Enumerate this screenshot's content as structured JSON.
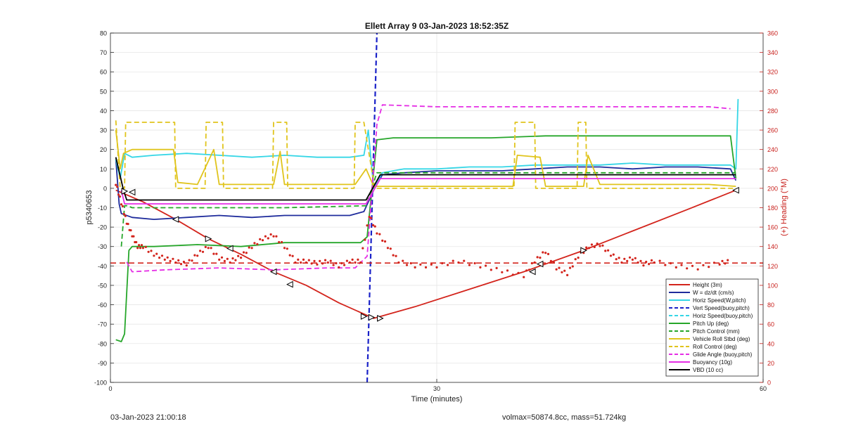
{
  "chart_data": {
    "type": "line",
    "title": "Ellett Array 9 03-Jan-2023 18:52:35Z",
    "xlabel": "Time (minutes)",
    "ylabel_left": "p5340653",
    "ylabel_right": "(+) Heading (°M)",
    "xlim": [
      0,
      60
    ],
    "ylim_left": [
      -100,
      80
    ],
    "ylim_right": [
      0,
      360
    ],
    "x_ticks": [
      "0",
      "30",
      "60"
    ],
    "y_ticks_left": [
      "80",
      "70",
      "60",
      "50",
      "40",
      "30",
      "20",
      "10",
      "0",
      "-10",
      "-20",
      "-30",
      "-40",
      "-50",
      "-60",
      "-70",
      "-80",
      "-90",
      "-100"
    ],
    "y_ticks_right": [
      "360",
      "340",
      "320",
      "300",
      "280",
      "260",
      "240",
      "220",
      "200",
      "180",
      "160",
      "140",
      "120",
      "100",
      "80",
      "60",
      "40",
      "20",
      "0"
    ],
    "grid": true,
    "legend_position": "bottom-right",
    "colors": {
      "red": "#d3241c",
      "navy": "#1f2c9c",
      "cyan": "#35d6e6",
      "blue": "#1a22c8",
      "green": "#26a62a",
      "yellow": "#e0c41c",
      "magenta": "#e52ee5",
      "black": "#000000",
      "right_axis": "#c8201c"
    },
    "series": [
      {
        "name": "Height (3m)",
        "color": "#d3241c",
        "dash": false,
        "x": [
          0.5,
          3,
          6,
          9,
          12,
          15,
          18,
          21,
          23.8,
          24.2,
          28,
          33,
          38,
          43,
          48,
          53,
          57.5
        ],
        "y": [
          -1,
          -7,
          -16,
          -26,
          -34,
          -43,
          -50,
          -59,
          -66,
          -67,
          -61,
          -52,
          -43,
          -33,
          -22,
          -11,
          -1
        ]
      },
      {
        "name": "W = dz/dt (cm/s)",
        "color": "#1f2c9c",
        "dash": false,
        "x": [
          0.5,
          0.8,
          1.0,
          2,
          4,
          7,
          10,
          13,
          16,
          19,
          22,
          23.3,
          24.2,
          25,
          27,
          30,
          33,
          36,
          39,
          42,
          45,
          48,
          51,
          54,
          57,
          57.5
        ],
        "y": [
          15,
          -8,
          -13,
          -15,
          -16,
          -15,
          -14,
          -15,
          -14,
          -14,
          -14,
          -12,
          -1,
          7,
          8,
          9,
          9,
          9,
          10,
          11,
          11,
          10,
          11,
          11,
          10,
          4
        ]
      },
      {
        "name": "Horiz Speed(W,pitch)",
        "color": "#35d6e6",
        "dash": false,
        "x": [
          0.5,
          0.9,
          1.3,
          2,
          4,
          7,
          10,
          13,
          16,
          19,
          22,
          23.3,
          23.7,
          24.2,
          25,
          27,
          30,
          33,
          36,
          39,
          42,
          45,
          48,
          51,
          54,
          57,
          57.5,
          57.7
        ],
        "y": [
          15,
          5,
          18,
          16,
          17,
          18,
          17,
          16,
          17,
          16,
          16,
          17,
          30,
          0,
          8,
          10,
          10,
          11,
          11,
          12,
          12,
          12,
          13,
          12,
          12,
          12,
          10,
          46
        ]
      },
      {
        "name": "Vert Speed(buoy,pitch)",
        "color": "#1a22c8",
        "dash": true,
        "x": [
          23.6,
          24.5
        ],
        "y": [
          -100,
          80
        ]
      },
      {
        "name": "Horiz Speed(buoy,pitch)",
        "color": "#35d6e6",
        "dash": true,
        "x": [],
        "y": []
      },
      {
        "name": "Pitch Up (deg)",
        "color": "#26a62a",
        "dash": false,
        "x": [
          0.5,
          1.0,
          1.3,
          1.7,
          2,
          4,
          8,
          12,
          16,
          20,
          23,
          23.6,
          24.5,
          26,
          30,
          35,
          40,
          45,
          50,
          55,
          57,
          57.5
        ],
        "y": [
          -78,
          -79,
          -75,
          -32,
          -30,
          -30,
          -29,
          -30,
          -28,
          -28,
          -28,
          -25,
          25,
          26,
          26,
          26,
          27,
          27,
          27,
          27,
          27,
          5
        ]
      },
      {
        "name": "Pitch Control (mm)",
        "color": "#26a62a",
        "dash": true,
        "x": [
          1.0,
          1.3,
          1.6,
          2,
          10,
          16,
          23.5,
          24.5,
          30,
          40,
          50,
          57.5
        ],
        "y": [
          -30,
          -9,
          -9,
          -10,
          -10,
          -10,
          -9,
          8,
          8,
          8,
          8,
          8
        ]
      },
      {
        "name": "Vehicle Roll Stbd (deg)",
        "color": "#e0c41c",
        "dash": false,
        "x": [
          0.5,
          0.9,
          1.2,
          2,
          4,
          5.8,
          6.2,
          8,
          9.5,
          10,
          12,
          15,
          15.6,
          16,
          18,
          21,
          22.5,
          23.5,
          24.2,
          26,
          30,
          37,
          37.4,
          39.5,
          40,
          42,
          43.5,
          43.9,
          45,
          50,
          55,
          57.5
        ],
        "y": [
          30,
          10,
          18,
          20,
          20,
          20,
          3,
          2,
          20,
          2,
          2,
          2,
          19,
          2,
          2,
          2,
          2,
          10,
          1,
          1,
          1,
          1,
          17,
          16,
          1,
          1,
          1,
          17,
          2,
          2,
          2,
          1
        ]
      },
      {
        "name": "Roll Control (deg)",
        "color": "#e0c41c",
        "dash": true,
        "x": [
          0.5,
          0.9,
          1.3,
          1.4,
          5.9,
          6.0,
          8.7,
          8.8,
          10.3,
          10.4,
          14.9,
          15.0,
          16.2,
          16.3,
          22.4,
          22.5,
          23.3,
          24.3,
          24.4,
          37.1,
          37.2,
          39.0,
          39.1,
          42.9,
          43.0,
          43.7,
          43.8,
          57.5
        ],
        "y": [
          35,
          0,
          0,
          34,
          34,
          0,
          0,
          34,
          34,
          0,
          0,
          34,
          34,
          0,
          0,
          34,
          34,
          0,
          0,
          0,
          34,
          34,
          0,
          0,
          34,
          34,
          0,
          0
        ]
      },
      {
        "name": "Glide Angle (buoy,pitch)",
        "color": "#e52ee5",
        "dash": true,
        "x": [
          1.5,
          2,
          5,
          10,
          15,
          20,
          22.5,
          23.6,
          24.5,
          25,
          30,
          35,
          40,
          45,
          50,
          55,
          57
        ],
        "y": [
          -38,
          -43,
          -42,
          -41,
          -42,
          -41,
          -41,
          -35,
          33,
          43,
          42,
          42,
          42,
          42,
          42,
          42,
          41
        ]
      },
      {
        "name": "Buoyancy (10g)",
        "color": "#e52ee5",
        "dash": false,
        "x": [
          1.0,
          1.3,
          23.5,
          24.8,
          57.5
        ],
        "y": [
          -1,
          -8,
          -8,
          5,
          5
        ]
      },
      {
        "name": "VBD (10 cc)",
        "color": "#000000",
        "dash": false,
        "x": [
          0.5,
          1.2,
          1.5,
          23.5,
          24.8,
          57.5
        ],
        "y": [
          16,
          -1,
          -6,
          -6,
          7,
          7
        ]
      }
    ],
    "heading_series": {
      "axis": "right",
      "color": "#d3241c",
      "x": [
        0.5,
        1,
        1.5,
        2,
        2.5,
        3,
        4,
        5,
        6,
        7,
        8,
        9,
        10,
        11,
        12,
        13,
        14,
        15,
        16,
        17,
        18,
        19,
        20,
        21,
        22,
        23,
        23.8,
        24.5,
        25.5,
        26.5,
        28,
        30,
        32,
        34,
        36,
        38,
        39,
        40,
        41,
        42,
        43,
        44,
        45,
        46,
        47,
        48,
        49,
        50,
        52,
        54,
        56,
        57
      ],
      "y": [
        205,
        185,
        165,
        152,
        140,
        140,
        132,
        128,
        125,
        122,
        132,
        140,
        128,
        125,
        130,
        140,
        148,
        152,
        140,
        125,
        125,
        123,
        125,
        120,
        125,
        125,
        172,
        155,
        140,
        125,
        120,
        120,
        125,
        120,
        115,
        110,
        125,
        135,
        118,
        112,
        130,
        140,
        142,
        132,
        125,
        128,
        122,
        125,
        120,
        118,
        123,
        125
      ]
    },
    "heading_reference": {
      "y": 123,
      "color": "#d3241c",
      "dash": true
    },
    "markers": {
      "right": [
        [
          1.3,
          -1.5
        ],
        [
          9,
          -26
        ],
        [
          23.3,
          -66
        ],
        [
          24,
          -66.5
        ],
        [
          24.8,
          -67
        ],
        [
          43.5,
          -32
        ]
      ],
      "left": [
        [
          2,
          -2
        ],
        [
          6,
          -16
        ],
        [
          11,
          -31
        ],
        [
          15,
          -43
        ],
        [
          16.5,
          -49.5
        ],
        [
          38.8,
          -43
        ],
        [
          39.5,
          -39
        ],
        [
          57.5,
          -1
        ]
      ]
    }
  },
  "footer": {
    "left": "03-Jan-2023 21:00:18",
    "right": "volmax=50874.8cc, mass=51.724kg"
  }
}
